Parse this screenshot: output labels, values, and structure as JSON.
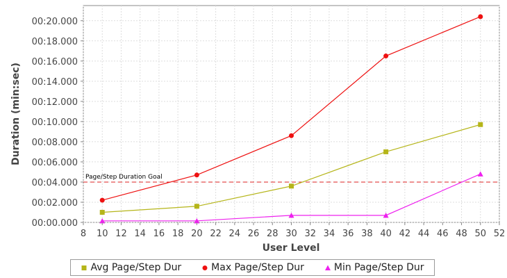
{
  "chart_data": {
    "type": "line",
    "xlabel": "User Level",
    "ylabel": "Duration (min:sec)",
    "xlim": [
      8,
      52
    ],
    "ylim": [
      0,
      21.5
    ],
    "x_ticks": [
      8,
      10,
      12,
      14,
      16,
      18,
      20,
      22,
      24,
      26,
      28,
      30,
      32,
      34,
      36,
      38,
      40,
      42,
      44,
      46,
      48,
      50,
      52
    ],
    "y_ticks": [
      "00:00.000",
      "00:02.000",
      "00:04.000",
      "00:06.000",
      "00:08.000",
      "00:10.000",
      "00:12.000",
      "00:14.000",
      "00:16.000",
      "00:18.000",
      "00:20.000"
    ],
    "grid": true,
    "x": [
      10,
      20,
      30,
      40,
      50
    ],
    "series": [
      {
        "name": "Avg Page/Step Dur",
        "color": "#b5b519",
        "marker": "square",
        "values": [
          1.0,
          1.6,
          3.6,
          7.0,
          9.7
        ]
      },
      {
        "name": "Max Page/Step Dur",
        "color": "#ee1111",
        "marker": "circle",
        "values": [
          2.2,
          4.7,
          8.6,
          16.5,
          20.4
        ]
      },
      {
        "name": "Min Page/Step Dur",
        "color": "#ee22ee",
        "marker": "triangle",
        "values": [
          0.15,
          0.15,
          0.7,
          0.7,
          4.8
        ]
      }
    ],
    "annotations": [
      {
        "label": "Page/Step Duration Goal",
        "y": 4.0,
        "color": "#dd2222",
        "style": "dashed"
      }
    ],
    "legend_position": "bottom"
  }
}
